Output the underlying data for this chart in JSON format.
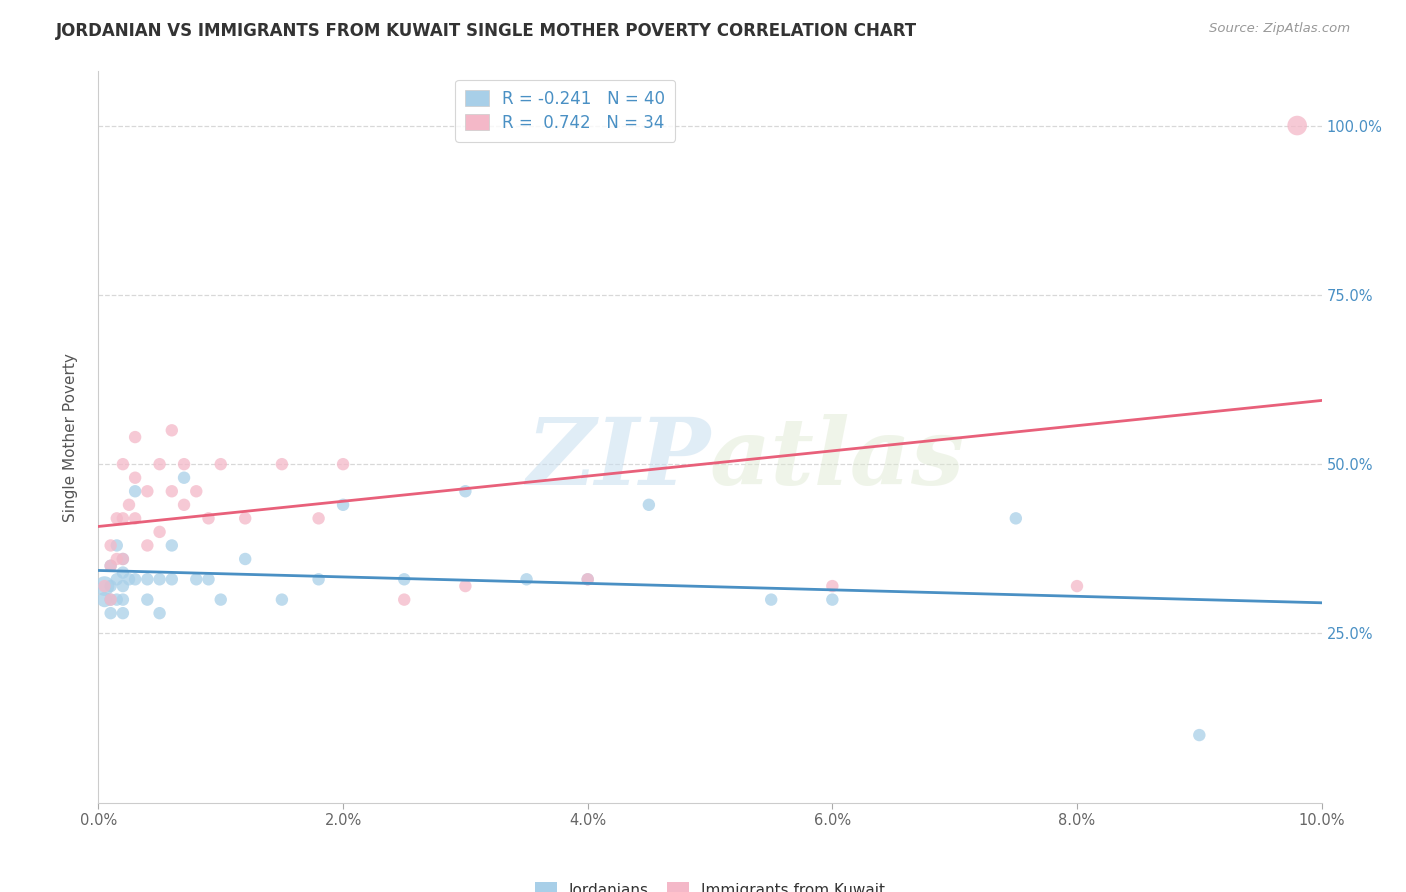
{
  "title": "JORDANIAN VS IMMIGRANTS FROM KUWAIT SINGLE MOTHER POVERTY CORRELATION CHART",
  "source": "Source: ZipAtlas.com",
  "ylabel": "Single Mother Poverty",
  "xlim": [
    0.0,
    0.1
  ],
  "ylim": [
    0.0,
    1.08
  ],
  "xticks": [
    0.0,
    0.02,
    0.04,
    0.06,
    0.08,
    0.1
  ],
  "xticklabels": [
    "0.0%",
    "2.0%",
    "4.0%",
    "6.0%",
    "8.0%",
    "10.0%"
  ],
  "right_yticks": [
    0.25,
    0.5,
    0.75,
    1.0
  ],
  "right_yticklabels": [
    "25.0%",
    "50.0%",
    "75.0%",
    "100.0%"
  ],
  "blue_color": "#a8cfe8",
  "pink_color": "#f4b8c8",
  "blue_line_color": "#4a90c4",
  "pink_line_color": "#e8607a",
  "blue_R": -0.241,
  "blue_N": 40,
  "pink_R": 0.742,
  "pink_N": 34,
  "legend_blue_label": "R = -0.241   N = 40",
  "legend_pink_label": "R =  0.742   N = 34",
  "jordanians_label": "Jordanians",
  "kuwait_label": "Immigrants from Kuwait",
  "watermark_zip": "ZIP",
  "watermark_atlas": "atlas",
  "blue_x": [
    0.0005,
    0.0005,
    0.001,
    0.001,
    0.001,
    0.001,
    0.0015,
    0.0015,
    0.0015,
    0.002,
    0.002,
    0.002,
    0.002,
    0.002,
    0.0025,
    0.003,
    0.003,
    0.004,
    0.004,
    0.005,
    0.005,
    0.006,
    0.006,
    0.007,
    0.008,
    0.009,
    0.01,
    0.012,
    0.015,
    0.018,
    0.02,
    0.025,
    0.03,
    0.035,
    0.04,
    0.045,
    0.055,
    0.06,
    0.075,
    0.09
  ],
  "blue_y": [
    0.32,
    0.3,
    0.35,
    0.32,
    0.3,
    0.28,
    0.38,
    0.33,
    0.3,
    0.36,
    0.34,
    0.32,
    0.3,
    0.28,
    0.33,
    0.46,
    0.33,
    0.33,
    0.3,
    0.33,
    0.28,
    0.38,
    0.33,
    0.48,
    0.33,
    0.33,
    0.3,
    0.36,
    0.3,
    0.33,
    0.44,
    0.33,
    0.46,
    0.33,
    0.33,
    0.44,
    0.3,
    0.3,
    0.42,
    0.1
  ],
  "blue_sizes": [
    200,
    120,
    80,
    80,
    80,
    80,
    80,
    80,
    80,
    80,
    80,
    80,
    80,
    80,
    80,
    80,
    80,
    80,
    80,
    80,
    80,
    80,
    80,
    80,
    80,
    80,
    80,
    80,
    80,
    80,
    80,
    80,
    80,
    80,
    80,
    80,
    80,
    80,
    80,
    80
  ],
  "pink_x": [
    0.0005,
    0.001,
    0.001,
    0.001,
    0.0015,
    0.0015,
    0.002,
    0.002,
    0.002,
    0.0025,
    0.003,
    0.003,
    0.003,
    0.004,
    0.004,
    0.005,
    0.005,
    0.006,
    0.006,
    0.007,
    0.007,
    0.008,
    0.009,
    0.01,
    0.012,
    0.015,
    0.018,
    0.02,
    0.025,
    0.03,
    0.04,
    0.06,
    0.08,
    0.098
  ],
  "pink_y": [
    0.32,
    0.38,
    0.35,
    0.3,
    0.42,
    0.36,
    0.5,
    0.42,
    0.36,
    0.44,
    0.54,
    0.48,
    0.42,
    0.46,
    0.38,
    0.5,
    0.4,
    0.55,
    0.46,
    0.5,
    0.44,
    0.46,
    0.42,
    0.5,
    0.42,
    0.5,
    0.42,
    0.5,
    0.3,
    0.32,
    0.33,
    0.32,
    0.32,
    1.0
  ],
  "pink_sizes": [
    80,
    80,
    80,
    80,
    80,
    80,
    80,
    80,
    80,
    80,
    80,
    80,
    80,
    80,
    80,
    80,
    80,
    80,
    80,
    80,
    80,
    80,
    80,
    80,
    80,
    80,
    80,
    80,
    80,
    80,
    80,
    80,
    80,
    200
  ],
  "background_color": "#ffffff",
  "grid_color": "#d8d8d8"
}
